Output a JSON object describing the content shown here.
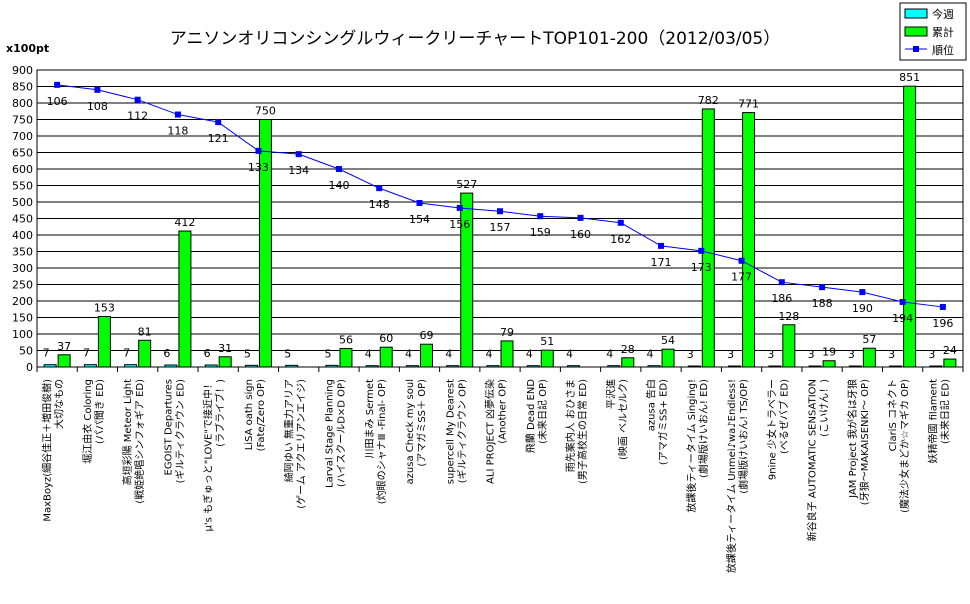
{
  "chart_data": {
    "type": "bar",
    "title": "アニソンオリコンシングルウィークリーチャートTOP101-200（2012/03/05）",
    "ylabel": "x100pt",
    "ylim": [
      0,
      900
    ],
    "yticks": [
      0,
      50,
      100,
      150,
      200,
      250,
      300,
      350,
      400,
      450,
      500,
      550,
      600,
      650,
      700,
      750,
      800,
      850,
      900
    ],
    "grid": true,
    "legend_position": "top-right",
    "colors": {
      "this_week": "#00ffff",
      "cumulative": "#00ff00",
      "rank": "#0000ff"
    },
    "categories": [
      [
        "MaxBoyz(細谷佳正＋増田俊樹)",
        "大切なもの"
      ],
      [
        "堀江由衣 Coloring",
        "(パパ聞き ED)"
      ],
      [
        "高垣彩陽 Meteor Light",
        "(戦姫絶唱シンフォギア ED)"
      ],
      [
        "EGOIST Departures",
        "(ギルティクラウン ED)"
      ],
      [
        "μ's もぎゅっと\"LOVE\"で接近中！",
        "(ラブライブ！)"
      ],
      [
        "LiSA oath sign",
        "(Fate/Zero OP)"
      ],
      [
        "綺阿ゆい 無重力アリア",
        "(ゲーム アクエリアンエイジ)"
      ],
      [
        "Larval Stage Planning",
        "(ハイスクールD×D OP)"
      ],
      [
        "川田まみ Sermet",
        "(灼眼のシャナⅢ -Final- OP)"
      ],
      [
        "azusa Check my soul",
        "(アマガミSS＋ OP)"
      ],
      [
        "supercell My Dearest",
        "(ギルティクラウン OP)"
      ],
      [
        "ALI PROJECT 凶夢伝染",
        "(Another OP)"
      ],
      [
        "飛蘭 Dead END",
        "(未来日記 OP)"
      ],
      [
        "雨先案内人 おひさま",
        "(男子高校生の日常 ED)"
      ],
      [
        "平沢進",
        "(映画 ベルセルク)"
      ],
      [
        "azusa 告白",
        "(アマガミSS+ ED)"
      ],
      [
        "放課後ティータイム Singing!",
        "(劇場版けいおん! ED)"
      ],
      [
        "放課後ティータイム Unmei♪wa♪Endless!",
        "(劇場版けいおん! TS/OP)"
      ],
      [
        "9nine 少女トラベラー",
        "(べるぜバブ ED)"
      ],
      [
        "新谷良子 AUTOMATIC SENSATION",
        "(こいけん！)"
      ],
      [
        "JAM Project 我が名は牙狼",
        "(牙狼～MAKAISENKI～ OP)"
      ],
      [
        "ClariS コネクト",
        "(魔法少女まどか☆マギカ OP)"
      ],
      [
        "妖精帝國 filament",
        "(未来日記 ED)"
      ]
    ],
    "series": [
      {
        "name": "今週",
        "type": "bar",
        "values": [
          7,
          7,
          7,
          6,
          6,
          5,
          5,
          5,
          4,
          4,
          4,
          4,
          4,
          4,
          4,
          4,
          3,
          3,
          3,
          3,
          3,
          3,
          3
        ]
      },
      {
        "name": "累計",
        "type": "bar",
        "values": [
          37,
          153,
          81,
          412,
          31,
          750,
          null,
          56,
          60,
          69,
          527,
          79,
          51,
          null,
          28,
          54,
          782,
          771,
          128,
          19,
          57,
          851,
          24
        ]
      },
      {
        "name": "順位",
        "type": "line",
        "labels": [
          106,
          108,
          112,
          118,
          121,
          133,
          134,
          140,
          148,
          154,
          156,
          157,
          159,
          160,
          162,
          171,
          173,
          177,
          186,
          188,
          190,
          194,
          196
        ],
        "y_values": [
          855,
          840,
          810,
          765,
          742,
          655,
          645,
          600,
          542,
          497,
          482,
          472,
          457,
          452,
          437,
          367,
          352,
          322,
          257,
          242,
          227,
          197,
          182
        ]
      }
    ]
  }
}
